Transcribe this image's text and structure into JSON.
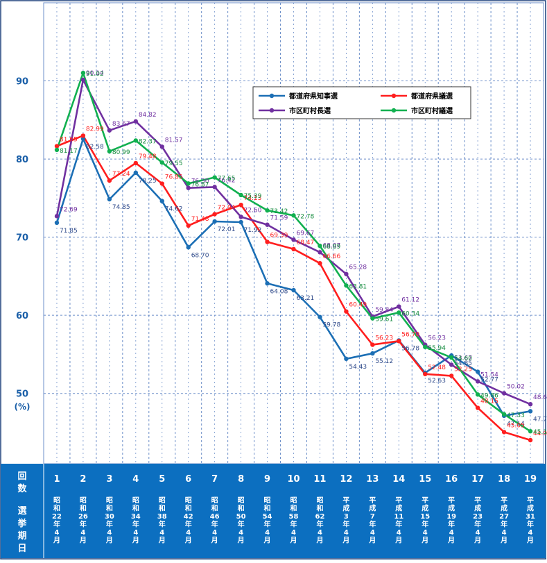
{
  "chart_data": {
    "type": "line",
    "title": "",
    "xlabel": "回数 選挙期日",
    "ylabel": "(%)",
    "ylim": [
      41,
      100
    ],
    "y_ticks": [
      50,
      60,
      70,
      80,
      90
    ],
    "grid": true,
    "legend_position": "top-right",
    "categories": [
      "1",
      "2",
      "3",
      "4",
      "5",
      "6",
      "7",
      "8",
      "9",
      "10",
      "11",
      "12",
      "13",
      "14",
      "15",
      "16",
      "17",
      "18",
      "19"
    ],
    "election_dates": [
      "昭和22年4月",
      "昭和26年4月",
      "昭和30年4月",
      "昭和34年4月",
      "昭和38年4月",
      "昭和42年4月",
      "昭和46年4月",
      "昭和50年4月",
      "昭和54年4月",
      "昭和58年4月",
      "昭和62年4月",
      "平成3年4月",
      "平成7年4月",
      "平成11年4月",
      "平成15年4月",
      "平成19年4月",
      "平成23年4月",
      "平成27年4月",
      "平成31年4月"
    ],
    "series": [
      {
        "name": "都道府県知事選",
        "color": "#1c6fb5",
        "label_color": "#2f4a8a",
        "values": [
          71.85,
          82.58,
          74.85,
          78.25,
          74.62,
          68.7,
          72.01,
          71.92,
          64.08,
          63.21,
          59.78,
          54.43,
          55.12,
          56.78,
          52.63,
          54.85,
          52.77,
          47.14,
          47.72
        ]
      },
      {
        "name": "都道府県議選",
        "color": "#ff1e1e",
        "label_color": "#ff1e1e",
        "values": [
          81.65,
          82.99,
          77.24,
          79.48,
          76.85,
          71.48,
          72.94,
          74.13,
          69.39,
          68.47,
          66.66,
          60.49,
          56.23,
          56.7,
          52.48,
          52.25,
          48.15,
          45.05,
          44.02
        ]
      },
      {
        "name": "市区町村長選",
        "color": "#7030a0",
        "label_color": "#7030a0",
        "values": [
          72.69,
          90.14,
          83.67,
          84.82,
          81.57,
          76.3,
          76.42,
          72.6,
          71.59,
          69.67,
          68.07,
          65.28,
          59.84,
          61.12,
          56.23,
          53.67,
          51.54,
          50.02,
          48.62
        ]
      },
      {
        "name": "市区町村議選",
        "color": "#11b050",
        "label_color": "#128a3c",
        "values": [
          81.17,
          91.02,
          80.99,
          82.37,
          79.55,
          76.87,
          77.65,
          75.39,
          73.42,
          72.78,
          68.89,
          63.81,
          59.61,
          60.34,
          55.94,
          54.6,
          49.86,
          47.33,
          45.16
        ]
      }
    ]
  },
  "axis": {
    "header_label_count": "回数",
    "header_label_date": "選挙期日",
    "unit_label": "(%)"
  },
  "theme": {
    "header_bg": "#0c6fc0",
    "header_text": "#ffffff",
    "grid_color": "#6d8fc9",
    "tick_color": "#1a5fa8"
  }
}
